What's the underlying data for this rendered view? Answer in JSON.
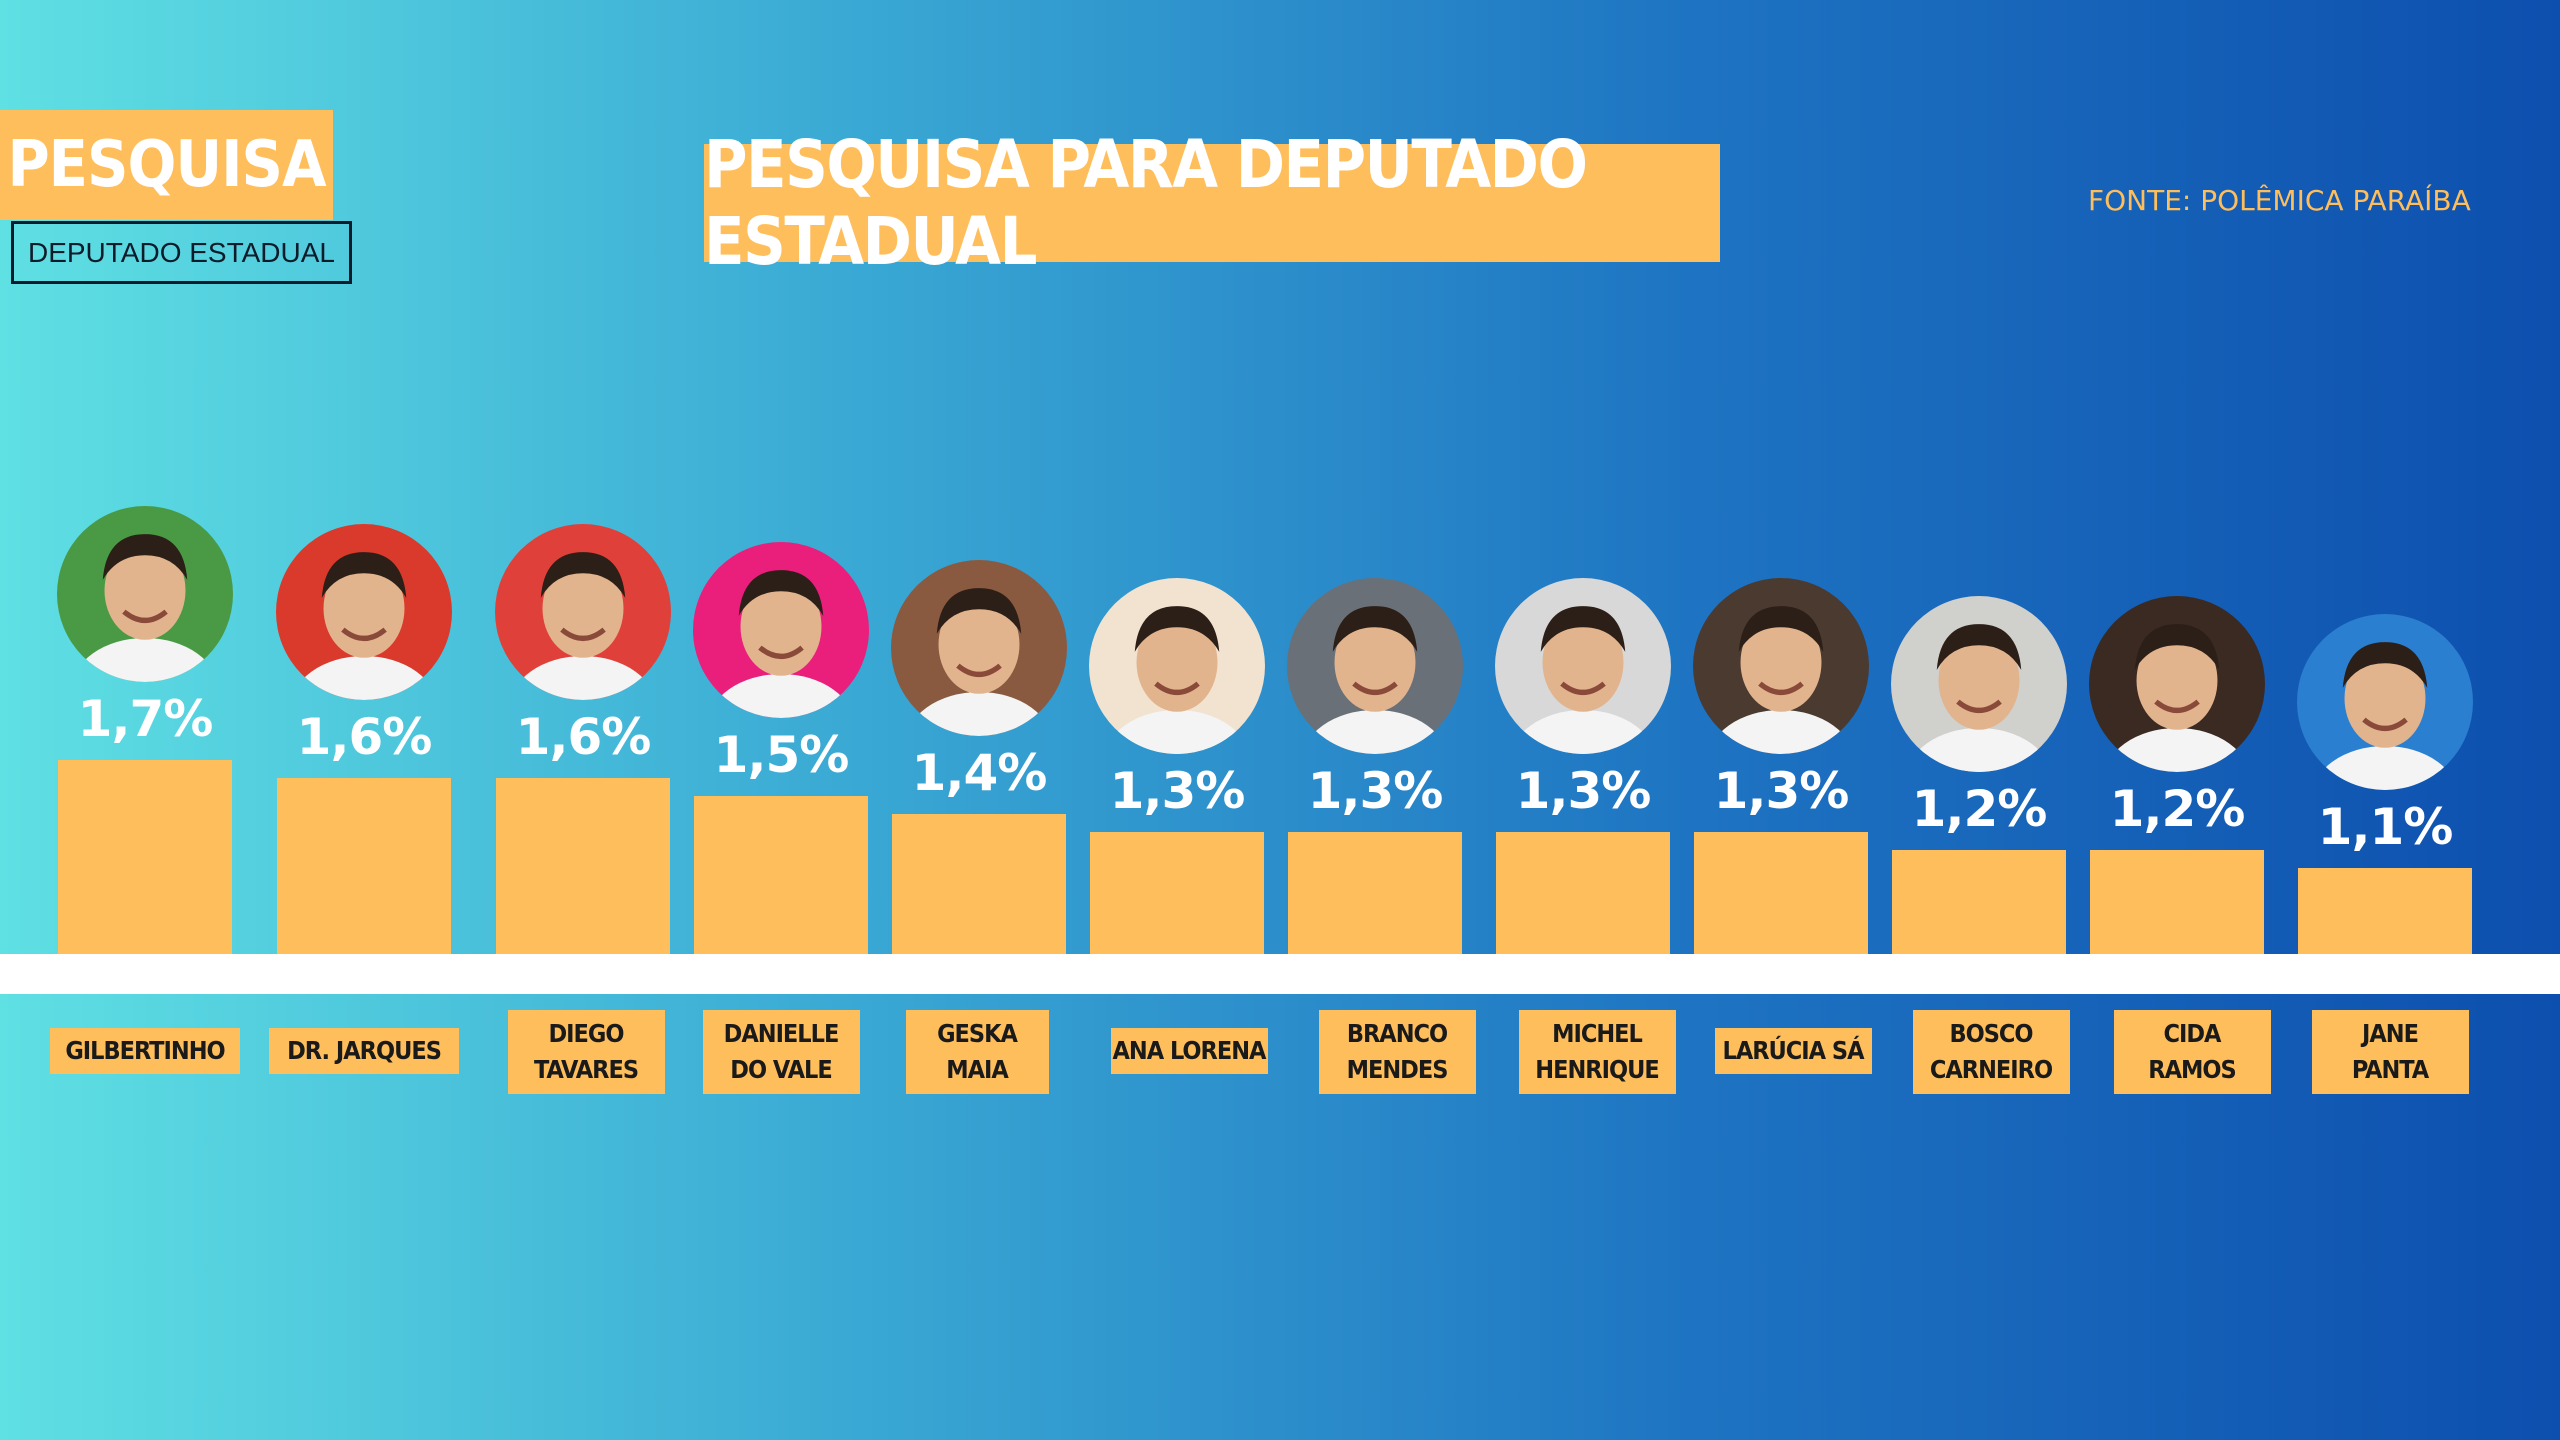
{
  "header": {
    "badge": "PESQUISA",
    "subtitle": "DEPUTADO ESTADUAL",
    "title": "PESQUISA PARA DEPUTADO ESTADUAL",
    "source": "FONTE: POLÊMICA PARAÍBA"
  },
  "colors": {
    "bar": "#ffbe5c",
    "value_text": "#ffffff",
    "background_start": "#5fe0e3",
    "background_end": "#0d4fae"
  },
  "chart_data": {
    "type": "bar",
    "title": "PESQUISA PARA DEPUTADO ESTADUAL",
    "categories": [
      "GILBERTINHO",
      "DR. JARQUES",
      "DIEGO TAVARES",
      "DANIELLE DO VALE",
      "GESKA MAIA",
      "ANA LORENA",
      "BRANCO MENDES",
      "MICHEL HENRIQUE",
      "LARÚCIA SÁ",
      "BOSCO CARNEIRO",
      "CIDA RAMOS",
      "JANE PANTA"
    ],
    "values": [
      1.7,
      1.6,
      1.6,
      1.5,
      1.4,
      1.3,
      1.3,
      1.3,
      1.3,
      1.2,
      1.2,
      1.1
    ],
    "value_labels": [
      "1,7%",
      "1,6%",
      "1,6%",
      "1,5%",
      "1,4%",
      "1,3%",
      "1,3%",
      "1,3%",
      "1,3%",
      "1,2%",
      "1,2%",
      "1,1%"
    ],
    "name_labels": [
      "GILBERTINHO",
      "DR. JARQUES",
      "DIEGO\nTAVARES",
      "DANIELLE\nDO VALE",
      "GESKA\nMAIA",
      "ANA LORENA",
      "BRANCO\nMENDES",
      "MICHEL\nHENRIQUE",
      "LARÚCIA SÁ",
      "BOSCO\nCARNEIRO",
      "CIDA\nRAMOS",
      "JANE\nPANTA"
    ],
    "xlabel": "",
    "ylabel": "",
    "legend": "none",
    "grid": false
  },
  "candidates": [
    {
      "photo": "candidate-photo-gilbertinho",
      "bg": "#4a9a45"
    },
    {
      "photo": "candidate-photo-dr-jarques",
      "bg": "#d93a2b"
    },
    {
      "photo": "candidate-photo-diego-tavares",
      "bg": "#e0403a"
    },
    {
      "photo": "candidate-photo-danielle-do-vale",
      "bg": "#ea1f7c"
    },
    {
      "photo": "candidate-photo-geska-maia",
      "bg": "#8a5a40"
    },
    {
      "photo": "candidate-photo-ana-lorena",
      "bg": "#f2e3d0"
    },
    {
      "photo": "candidate-photo-branco-mendes",
      "bg": "#6a7078"
    },
    {
      "photo": "candidate-photo-michel-henrique",
      "bg": "#d8d8d8"
    },
    {
      "photo": "candidate-photo-larucia-sa",
      "bg": "#4a3a30"
    },
    {
      "photo": "candidate-photo-bosco-carneiro",
      "bg": "#d0d0cc"
    },
    {
      "photo": "candidate-photo-cida-ramos",
      "bg": "#3a2a22"
    },
    {
      "photo": "candidate-photo-jane-panta",
      "bg": "#2a7fd0"
    }
  ]
}
